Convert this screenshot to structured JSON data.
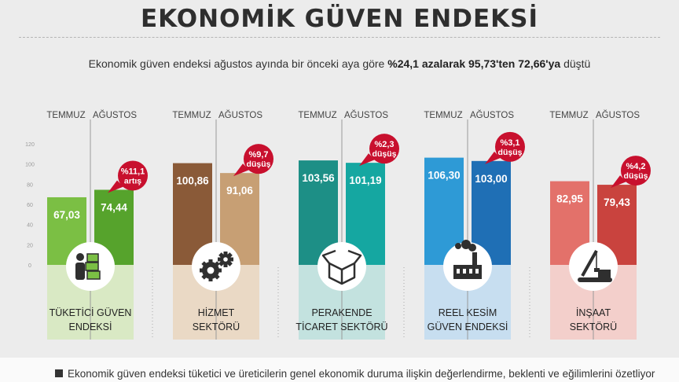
{
  "header": {
    "title": "EKONOMİK GÜVEN ENDEKSİ",
    "subtitle_pre": "Ekonomik güven endeksi ağustos ayında bir önceki aya göre ",
    "subtitle_bold": "%24,1 azalarak 95,73'ten 72,66'ya",
    "subtitle_post": " düştü"
  },
  "footer": {
    "note": "Ekonomik güven endeksi tüketici ve üreticilerin genel ekonomik duruma ilişkin değerlendirme, beklenti ve eğilimlerini özetliyor"
  },
  "chart_data": {
    "type": "bar",
    "title": "EKONOMİK GÜVEN ENDEKSİ",
    "ylim": [
      0,
      120
    ],
    "yticks": [
      "0",
      "20",
      "40",
      "60",
      "80",
      "100",
      "120"
    ],
    "grid": false,
    "series_labels": [
      "TEMMUZ",
      "AĞUSTOS"
    ],
    "groups": [
      {
        "label_lines": [
          "TÜKETİCİ GÜVEN",
          "ENDEKSİ"
        ],
        "icon": "consumer-boxes-icon",
        "values": [
          67.03,
          74.44
        ],
        "value_labels": [
          "67,03",
          "74,44"
        ],
        "change_lines": [
          "%11,1",
          "artış"
        ],
        "colors": {
          "temmuz": "#7bbf44",
          "agustos": "#56a32c",
          "panel": "#d9e9c4"
        }
      },
      {
        "label_lines": [
          "HİZMET",
          "SEKTÖRÜ"
        ],
        "icon": "gears-icon",
        "values": [
          100.86,
          91.06
        ],
        "value_labels": [
          "100,86",
          "91,06"
        ],
        "change_lines": [
          "%9,7",
          "düşüş"
        ],
        "colors": {
          "temmuz": "#8a5a38",
          "agustos": "#c79f74",
          "panel": "#ead9c5"
        }
      },
      {
        "label_lines": [
          "PERAKENDE",
          "TİCARET SEKTÖRÜ"
        ],
        "icon": "box-icon",
        "values": [
          103.56,
          101.19
        ],
        "value_labels": [
          "103,56",
          "101,19"
        ],
        "change_lines": [
          "%2,3",
          "düşüş"
        ],
        "colors": {
          "temmuz": "#1d8f86",
          "agustos": "#15a7a1",
          "panel": "#c3e2df"
        }
      },
      {
        "label_lines": [
          "REEL KESİM",
          "GÜVEN ENDEKSİ"
        ],
        "icon": "factory-icon",
        "values": [
          106.3,
          103.0
        ],
        "value_labels": [
          "106,30",
          "103,00"
        ],
        "change_lines": [
          "%3,1",
          "düşüş"
        ],
        "colors": {
          "temmuz": "#2e9ad6",
          "agustos": "#1f6fb5",
          "panel": "#c7def0"
        }
      },
      {
        "label_lines": [
          "İNŞAAT",
          "SEKTÖRÜ"
        ],
        "icon": "crane-icon",
        "values": [
          82.95,
          79.43
        ],
        "value_labels": [
          "82,95",
          "79,43"
        ],
        "change_lines": [
          "%4,2",
          "düşüş"
        ],
        "colors": {
          "temmuz": "#e3716a",
          "agustos": "#c9433e",
          "panel": "#f3cfcb"
        }
      }
    ],
    "badge_color": "#c8102e",
    "icon_color": "#2f2f2f"
  }
}
